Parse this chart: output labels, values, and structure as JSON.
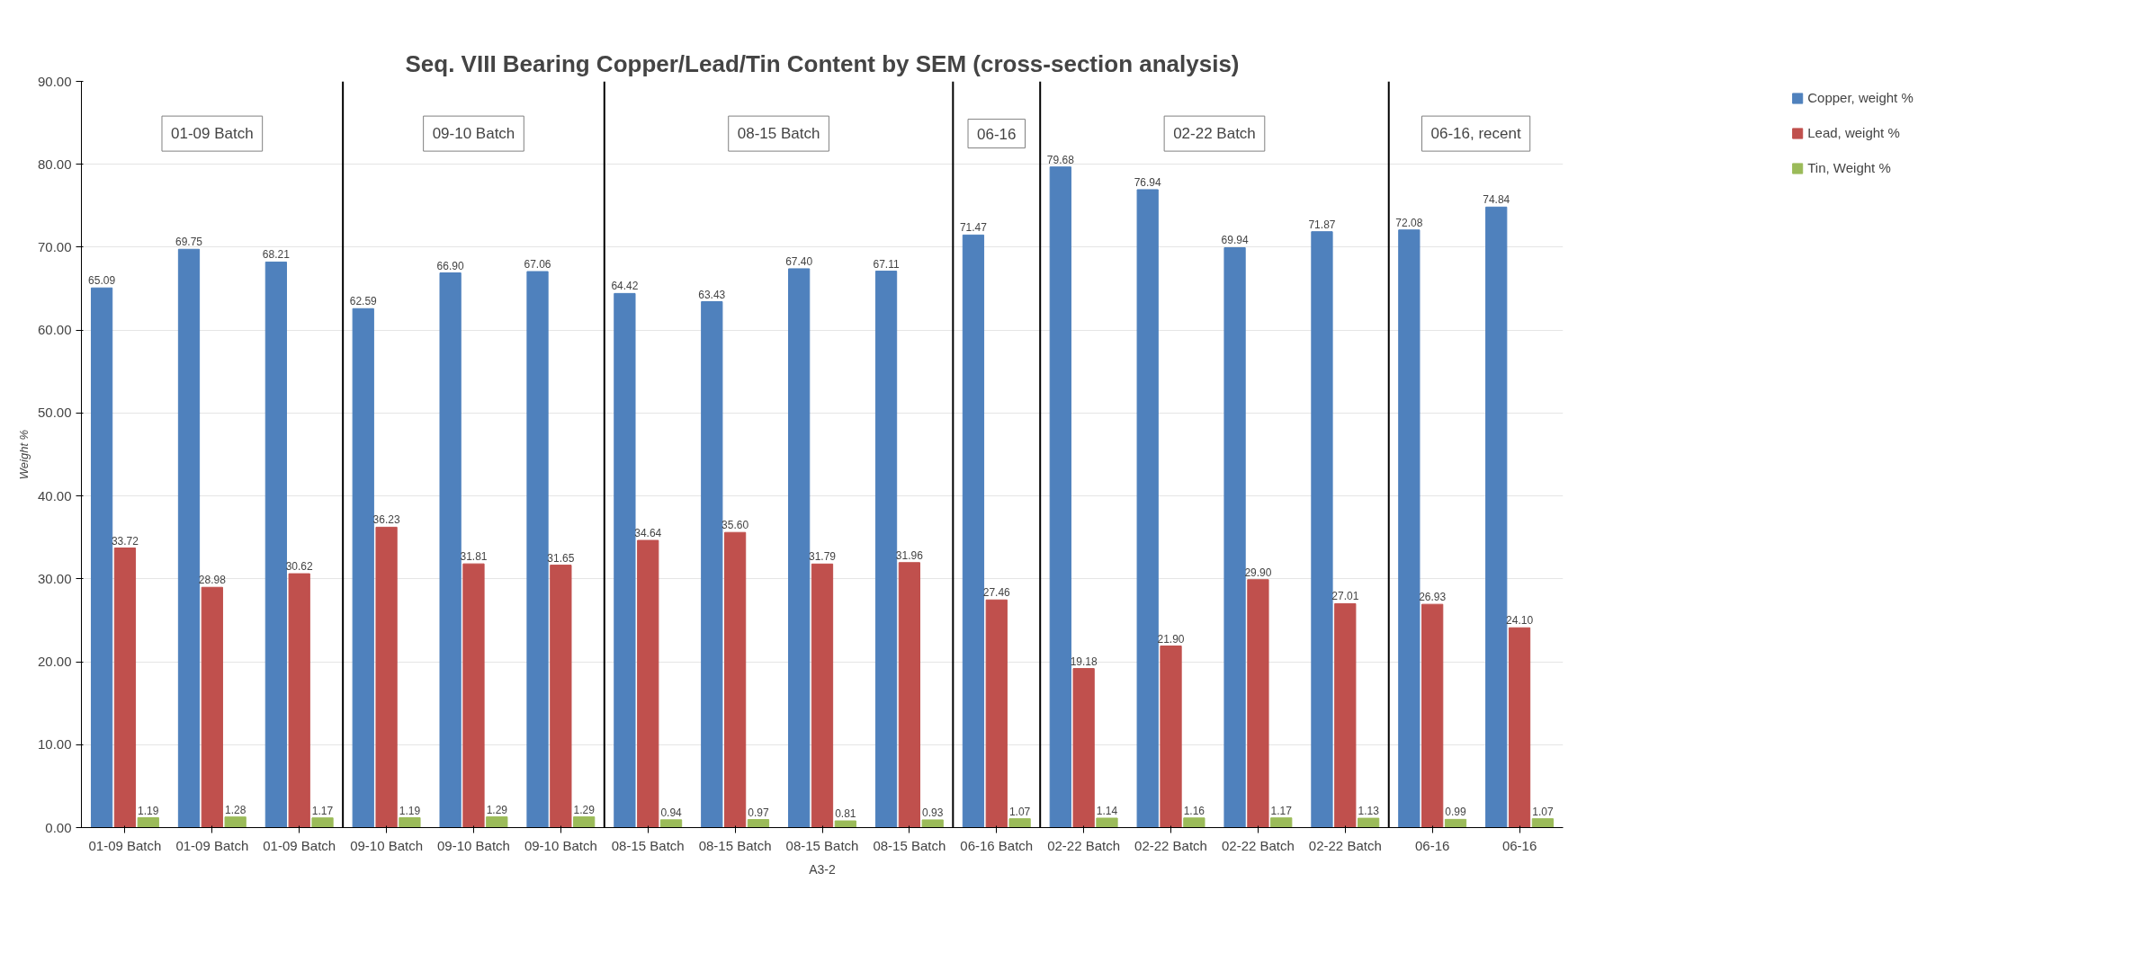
{
  "chart_data": {
    "type": "bar",
    "title": "Seq. VIII Bearing Copper/Lead/Tin Content by SEM (cross-section analysis)",
    "ylabel": "Weight %",
    "categories": [
      "01-09 Batch",
      "01-09 Batch",
      "01-09 Batch",
      "09-10 Batch",
      "09-10 Batch",
      "09-10 Batch",
      "08-15 Batch",
      "08-15 Batch",
      "08-15 Batch",
      "08-15 Batch",
      "06-16 Batch",
      "02-22 Batch",
      "02-22 Batch",
      "02-22 Batch",
      "02-22 Batch",
      "06-16",
      "06-16"
    ],
    "series": [
      {
        "name": "Copper, weight %",
        "color": "#4f81bd",
        "values": [
          65.09,
          69.75,
          68.21,
          62.59,
          66.9,
          67.06,
          64.42,
          63.43,
          67.4,
          67.11,
          71.47,
          79.68,
          76.94,
          69.94,
          71.87,
          72.08,
          74.84
        ],
        "value_labels": [
          "65.09",
          "69.75",
          "68.21",
          "62.59",
          "66.90",
          "67.06",
          "64.42",
          "63.43",
          "67.40",
          "67.11",
          "71.47",
          "79.68",
          "76.94",
          "69.94",
          "71.87",
          "72.08",
          "74.84"
        ]
      },
      {
        "name": "Lead, weight %",
        "color": "#c0504d",
        "values": [
          33.72,
          28.98,
          30.62,
          36.23,
          31.81,
          31.65,
          34.64,
          35.6,
          31.79,
          31.96,
          27.46,
          19.18,
          21.9,
          29.9,
          27.01,
          26.93,
          24.1
        ],
        "value_labels": [
          "33.72",
          "28.98",
          "30.62",
          "36.23",
          "31.81",
          "31.65",
          "34.64",
          "35.60",
          "31.79",
          "31.96",
          "27.46",
          "19.18",
          "21.90",
          "29.90",
          "27.01",
          "26.93",
          "24.10"
        ]
      },
      {
        "name": "Tin, Weight %",
        "color": "#9bbb59",
        "values": [
          1.19,
          1.28,
          1.17,
          1.19,
          1.29,
          1.29,
          0.94,
          0.97,
          0.81,
          0.93,
          1.07,
          1.14,
          1.16,
          1.17,
          1.13,
          0.99,
          1.07
        ],
        "value_labels": [
          "1.19",
          "1.28",
          "1.17",
          "1.19",
          "1.29",
          "1.29",
          "0.94",
          "0.97",
          "0.81",
          "0.93",
          "1.07",
          "1.14",
          "1.16",
          "1.17",
          "1.13",
          "0.99",
          "1.07"
        ]
      }
    ],
    "ylim": [
      0,
      90
    ],
    "yticks": [
      {
        "value": 0,
        "label": "0.00"
      },
      {
        "value": 10,
        "label": "10.00"
      },
      {
        "value": 20,
        "label": "20.00"
      },
      {
        "value": 30,
        "label": "30.00"
      },
      {
        "value": 40,
        "label": "40.00"
      },
      {
        "value": 50,
        "label": "50.00"
      },
      {
        "value": 60,
        "label": "60.00"
      },
      {
        "value": 70,
        "label": "70.00"
      },
      {
        "value": 80,
        "label": "80.00"
      },
      {
        "value": 90,
        "label": "90.00"
      }
    ],
    "annotations": [
      "01-09 Batch",
      "09-10 Batch",
      "08-15 Batch",
      "06-16",
      "02-22 Batch",
      "06-16, recent",
      "A3-2"
    ],
    "grid": "y",
    "legend": "top right"
  }
}
